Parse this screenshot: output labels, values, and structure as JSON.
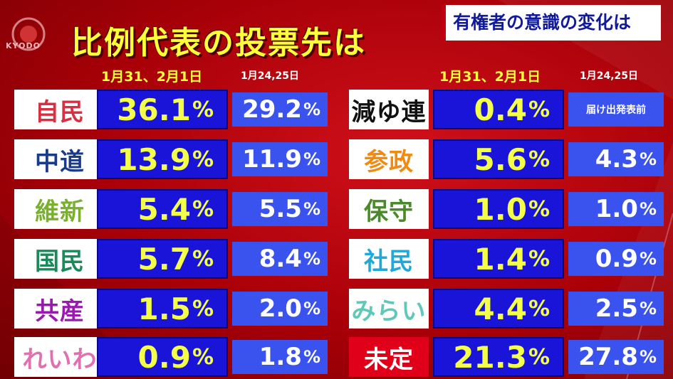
{
  "broadcaster": "KYODO",
  "title": "比例代表の投票先は",
  "subtitle": "有権者の意識の変化は",
  "headers": {
    "left_current": "1月31、2月1日",
    "left_previous": "1月24,25日",
    "right_current": "1月31、2月1日",
    "right_previous": "1月24,25日"
  },
  "percent_sign": "%",
  "left": [
    {
      "party": "自民",
      "color": "#d83040",
      "current": "36.1",
      "previous": "29.2"
    },
    {
      "party": "中道",
      "color": "#1a3a8a",
      "current": "13.9",
      "previous": "11.9"
    },
    {
      "party": "維新",
      "color": "#7ab030",
      "current": "5.4",
      "previous": "5.5"
    },
    {
      "party": "国民",
      "color": "#1a8a5a",
      "current": "5.7",
      "previous": "8.4"
    },
    {
      "party": "共産",
      "color": "#9a1ab0",
      "current": "1.5",
      "previous": "2.0"
    },
    {
      "party": "れいわ",
      "color": "#e070b0",
      "current": "0.9",
      "previous": "1.8"
    }
  ],
  "right": [
    {
      "party": "減ゆ連",
      "color": "#111111",
      "current": "0.4",
      "previous_note": "届け出発表前"
    },
    {
      "party": "参政",
      "color": "#f08a10",
      "current": "5.6",
      "previous": "4.3"
    },
    {
      "party": "保守",
      "color": "#4a8a2a",
      "current": "1.0",
      "previous": "1.0"
    },
    {
      "party": "社民",
      "color": "#20a8d8",
      "current": "1.4",
      "previous": "0.9"
    },
    {
      "party": "みらい",
      "color": "#60c8b8",
      "current": "4.4",
      "previous": "2.5"
    },
    {
      "party": "未定",
      "color": "#ffffff",
      "highlight": "#e0001a",
      "current": "21.3",
      "previous": "27.8"
    }
  ]
}
